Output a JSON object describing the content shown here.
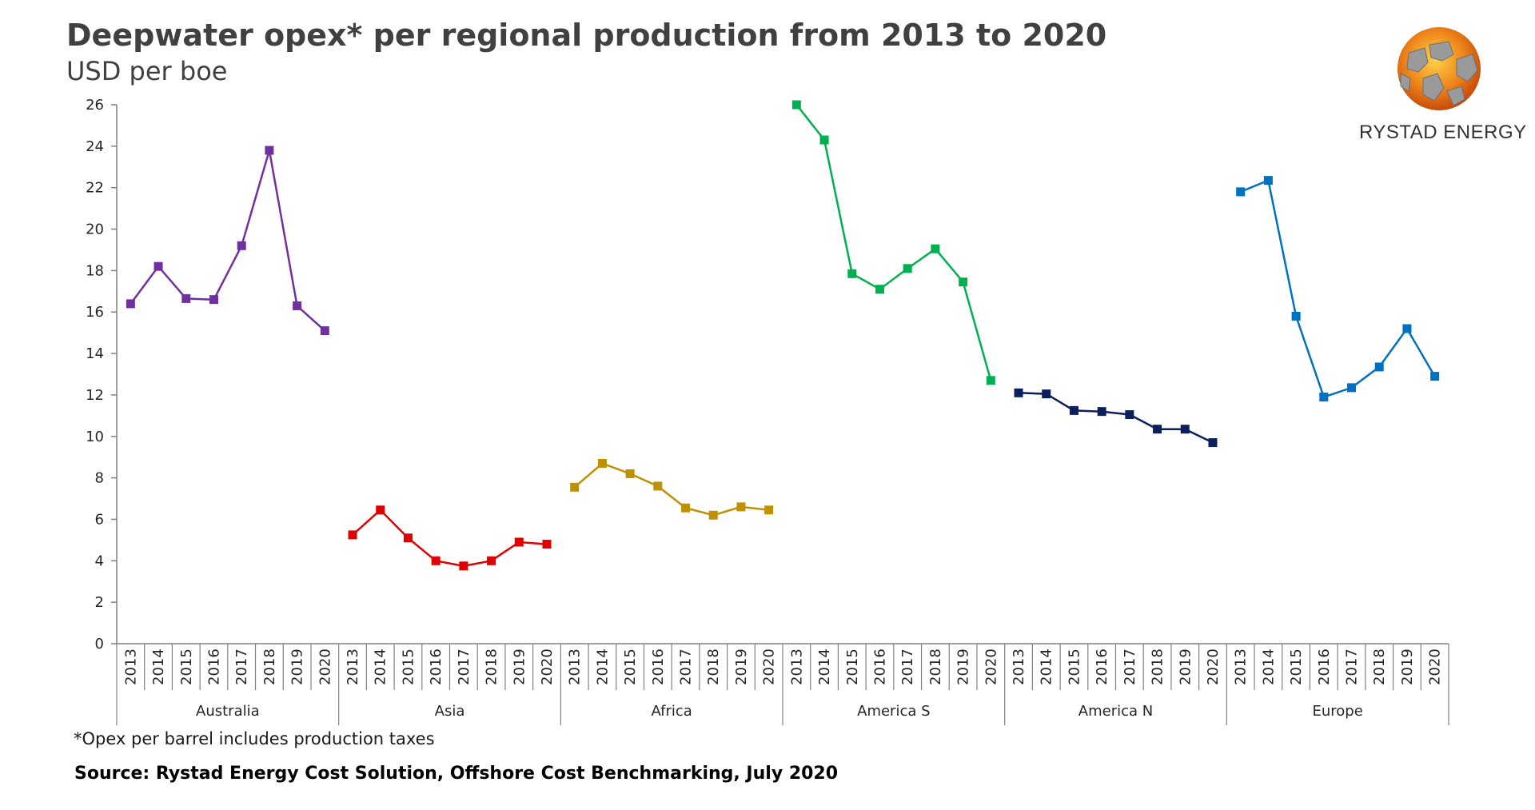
{
  "header": {
    "title": "Deepwater opex* per regional production from 2013 to 2020",
    "subtitle": "USD per boe"
  },
  "logo": {
    "text": "RYSTAD ENERGY",
    "icon": "rystad-globe-logo",
    "colors": {
      "orange": "#f08a1c",
      "dark_orange": "#d35f0f",
      "grey": "#8c8c8c"
    }
  },
  "footer": {
    "note": "*Opex per barrel includes production taxes",
    "source": "Source: Rystad Energy Cost Solution, Offshore Cost Benchmarking, July 2020"
  },
  "chart_data": {
    "type": "line",
    "title": "Deepwater opex* per regional production from 2013 to 2020",
    "ylabel": "USD per boe",
    "xlabel": "",
    "ylim": [
      0,
      26
    ],
    "yticks": [
      0,
      2,
      4,
      6,
      8,
      10,
      12,
      14,
      16,
      18,
      20,
      22,
      24,
      26
    ],
    "grid": false,
    "legend": "none",
    "years": [
      "2013",
      "2014",
      "2015",
      "2016",
      "2017",
      "2018",
      "2019",
      "2020"
    ],
    "series": [
      {
        "name": "Australia",
        "color": "#7030a0",
        "values": [
          16.4,
          18.2,
          16.65,
          16.6,
          19.2,
          23.8,
          16.3,
          15.1
        ]
      },
      {
        "name": "Asia",
        "color": "#e00000",
        "values": [
          5.25,
          6.45,
          5.1,
          4.0,
          3.75,
          4.0,
          4.9,
          4.8
        ]
      },
      {
        "name": "Africa",
        "color": "#bf9000",
        "values": [
          7.55,
          8.7,
          8.2,
          7.6,
          6.55,
          6.2,
          6.6,
          6.45
        ]
      },
      {
        "name": "America S",
        "color": "#00b050",
        "values": [
          26.0,
          24.3,
          17.85,
          17.1,
          18.1,
          19.05,
          17.45,
          12.7
        ]
      },
      {
        "name": "America N",
        "color": "#0a1f5c",
        "values": [
          12.1,
          12.05,
          11.25,
          11.2,
          11.05,
          10.35,
          10.35,
          9.7
        ]
      },
      {
        "name": "Europe",
        "color": "#0070c0",
        "values": [
          21.8,
          22.35,
          15.8,
          11.9,
          12.35,
          13.35,
          15.2,
          12.9
        ]
      }
    ]
  }
}
